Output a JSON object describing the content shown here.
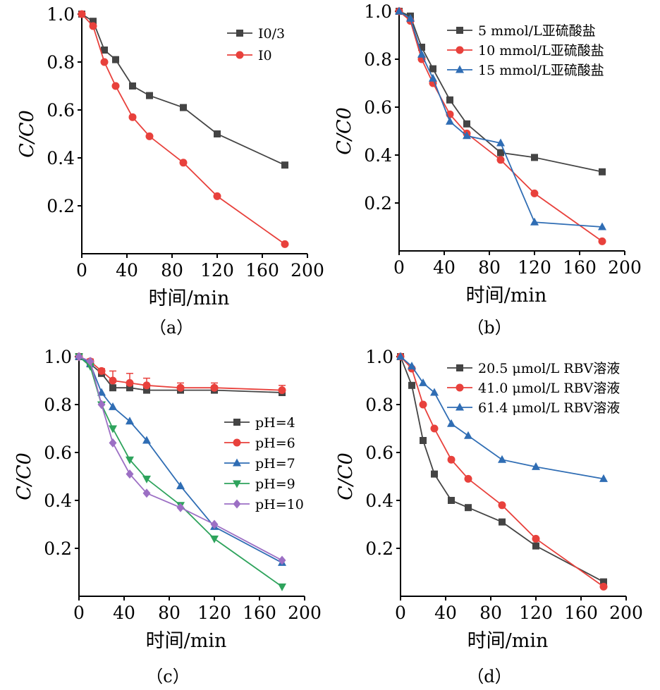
{
  "chart_data": [
    {
      "type": "line",
      "panel_label": "（a）",
      "xlabel": "时间/min",
      "ylabel": "C/C0",
      "xlim": [
        0,
        200
      ],
      "ylim": [
        0,
        1.0
      ],
      "xticks": [
        0,
        40,
        80,
        120,
        160,
        200
      ],
      "yticks": [
        0.2,
        0.4,
        0.6,
        0.8,
        1.0
      ],
      "ytick_labels": [
        "0.2",
        "0.4",
        "0.6",
        "0.8",
        "1.0"
      ],
      "legend": "top-right",
      "series": [
        {
          "name": "I0/3",
          "color": "#444444",
          "marker": "square",
          "x": [
            0,
            10,
            20,
            30,
            45,
            60,
            90,
            120,
            180
          ],
          "y": [
            1.0,
            0.97,
            0.85,
            0.81,
            0.7,
            0.66,
            0.61,
            0.5,
            0.37
          ]
        },
        {
          "name": "I0",
          "color": "#e8413c",
          "marker": "circle",
          "x": [
            0,
            10,
            20,
            30,
            45,
            60,
            90,
            120,
            180
          ],
          "y": [
            1.0,
            0.95,
            0.8,
            0.7,
            0.57,
            0.49,
            0.38,
            0.24,
            0.04
          ]
        }
      ]
    },
    {
      "type": "line",
      "panel_label": "（b）",
      "xlabel": "时间/min",
      "ylabel": "C/C0",
      "xlim": [
        0,
        200
      ],
      "ylim": [
        0,
        1.0
      ],
      "xticks": [
        0,
        40,
        80,
        120,
        160,
        200
      ],
      "yticks": [
        0.2,
        0.4,
        0.6,
        0.8,
        1.0
      ],
      "ytick_labels": [
        "0.2",
        "0.4",
        "0.6",
        "0.8",
        "1.0"
      ],
      "legend": "top-right",
      "series": [
        {
          "name": "5 mmol/L亚硫酸盐",
          "color": "#444444",
          "marker": "square",
          "x": [
            0,
            10,
            20,
            30,
            45,
            60,
            90,
            120,
            180
          ],
          "y": [
            1.0,
            0.98,
            0.85,
            0.76,
            0.63,
            0.53,
            0.41,
            0.39,
            0.33
          ]
        },
        {
          "name": "10 mmol/L亚硫酸盐",
          "color": "#e8413c",
          "marker": "circle",
          "x": [
            0,
            10,
            20,
            30,
            45,
            60,
            90,
            120,
            180
          ],
          "y": [
            1.0,
            0.96,
            0.8,
            0.7,
            0.57,
            0.49,
            0.38,
            0.24,
            0.04
          ]
        },
        {
          "name": "15 mmol/L亚硫酸盐",
          "color": "#2f6db4",
          "marker": "triangle-up",
          "x": [
            0,
            10,
            20,
            30,
            45,
            60,
            90,
            120,
            180
          ],
          "y": [
            1.0,
            0.97,
            0.82,
            0.72,
            0.54,
            0.48,
            0.45,
            0.12,
            0.1
          ]
        }
      ]
    },
    {
      "type": "line",
      "panel_label": "（c）",
      "xlabel": "时间/min",
      "ylabel": "C/C0",
      "xlim": [
        0,
        200
      ],
      "ylim": [
        0,
        1.0
      ],
      "xticks": [
        0,
        40,
        80,
        120,
        160,
        200
      ],
      "yticks": [
        0.2,
        0.4,
        0.6,
        0.8,
        1.0
      ],
      "ytick_labels": [
        "0.2",
        "0.4",
        "0.6",
        "0.8",
        "1.0"
      ],
      "legend": "center-right",
      "series": [
        {
          "name": "pH=4",
          "color": "#444444",
          "marker": "square",
          "x": [
            0,
            10,
            20,
            30,
            45,
            60,
            90,
            120,
            180
          ],
          "y": [
            1.0,
            0.97,
            0.93,
            0.87,
            0.87,
            0.86,
            0.86,
            0.86,
            0.85
          ]
        },
        {
          "name": "pH=6",
          "color": "#e8413c",
          "marker": "circle",
          "x": [
            0,
            10,
            20,
            30,
            45,
            60,
            90,
            120,
            180
          ],
          "y": [
            1.0,
            0.98,
            0.94,
            0.9,
            0.89,
            0.88,
            0.87,
            0.87,
            0.86
          ],
          "error": [
            0.0,
            0.01,
            0.01,
            0.04,
            0.04,
            0.03,
            0.02,
            0.02,
            0.02
          ]
        },
        {
          "name": "pH=7",
          "color": "#2f6db4",
          "marker": "triangle-up",
          "x": [
            0,
            10,
            20,
            30,
            45,
            60,
            90,
            120,
            180
          ],
          "y": [
            1.0,
            0.97,
            0.85,
            0.79,
            0.73,
            0.65,
            0.46,
            0.29,
            0.14
          ]
        },
        {
          "name": "pH=9",
          "color": "#2ea35c",
          "marker": "triangle-down",
          "x": [
            0,
            10,
            20,
            30,
            45,
            60,
            90,
            120,
            180
          ],
          "y": [
            1.0,
            0.96,
            0.8,
            0.7,
            0.57,
            0.49,
            0.38,
            0.24,
            0.04
          ]
        },
        {
          "name": "pH=10",
          "color": "#9c6fc4",
          "marker": "diamond",
          "x": [
            0,
            10,
            20,
            30,
            45,
            60,
            90,
            120,
            180
          ],
          "y": [
            1.0,
            0.98,
            0.8,
            0.64,
            0.51,
            0.43,
            0.37,
            0.3,
            0.15
          ]
        }
      ]
    },
    {
      "type": "line",
      "panel_label": "（d）",
      "xlabel": "时间/min",
      "ylabel": "C/C0",
      "xlim": [
        0,
        200
      ],
      "ylim": [
        0,
        1.0
      ],
      "xticks": [
        0,
        40,
        80,
        120,
        160,
        200
      ],
      "yticks": [
        0.2,
        0.4,
        0.6,
        0.8,
        1.0
      ],
      "ytick_labels": [
        "0.2",
        "0.4",
        "0.6",
        "0.8",
        "1.0"
      ],
      "legend": "top-right",
      "series": [
        {
          "name": "20.5 μmol/L RBV溶液",
          "color": "#444444",
          "marker": "square",
          "x": [
            0,
            10,
            20,
            30,
            45,
            60,
            90,
            120,
            180
          ],
          "y": [
            1.0,
            0.88,
            0.65,
            0.51,
            0.4,
            0.37,
            0.31,
            0.21,
            0.06
          ]
        },
        {
          "name": "41.0 μmol/L RBV溶液",
          "color": "#e8413c",
          "marker": "circle",
          "x": [
            0,
            10,
            20,
            30,
            45,
            60,
            90,
            120,
            180
          ],
          "y": [
            1.0,
            0.95,
            0.8,
            0.7,
            0.57,
            0.49,
            0.38,
            0.24,
            0.04
          ]
        },
        {
          "name": "61.4 μmol/L RBV溶液",
          "color": "#2f6db4",
          "marker": "triangle-up",
          "x": [
            0,
            10,
            20,
            30,
            45,
            60,
            90,
            120,
            180
          ],
          "y": [
            1.0,
            0.96,
            0.89,
            0.85,
            0.72,
            0.67,
            0.57,
            0.54,
            0.49
          ]
        }
      ]
    }
  ]
}
